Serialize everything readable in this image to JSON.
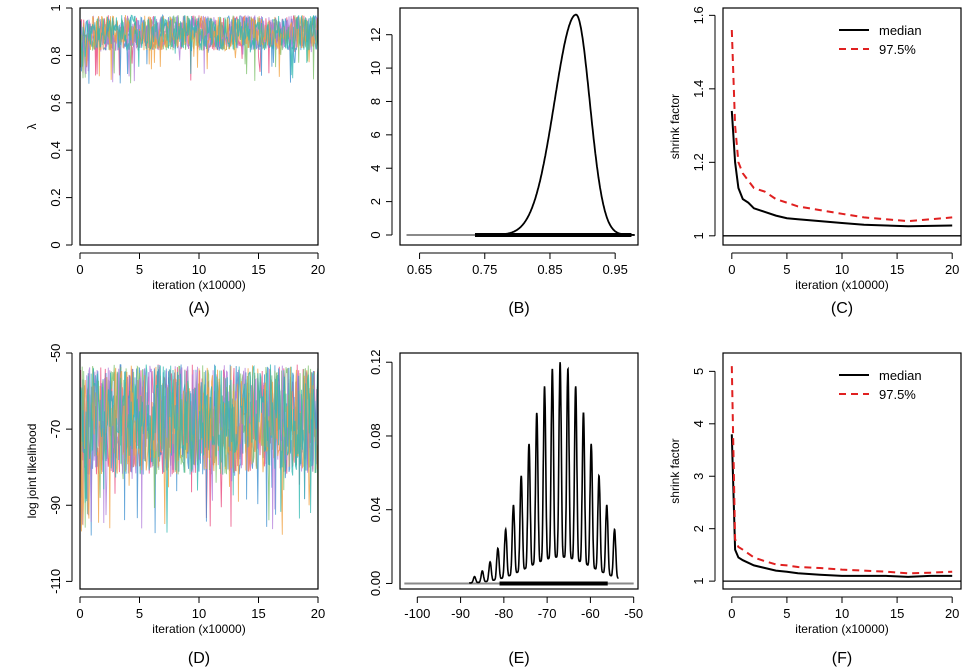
{
  "chart_data": [
    {
      "panel": "A",
      "type": "line",
      "caption": "(A)",
      "xlabel": "iteration (x10000)",
      "ylabel": "λ",
      "xlim": [
        0,
        20
      ],
      "ylim": [
        0,
        1
      ],
      "xticks": [
        0,
        5,
        10,
        15,
        20
      ],
      "yticks": [
        0,
        0.2,
        0.4,
        0.6,
        0.8,
        1
      ],
      "ytick_labels": [
        "0",
        "0.2",
        "0.4",
        "0.6",
        "0.8",
        "1"
      ],
      "trace": {
        "center": 0.9,
        "low": 0.82,
        "high": 0.97,
        "min": 0.68,
        "max": 0.98
      },
      "series_colors": [
        "#e8457a",
        "#3c8fd0",
        "#7cc06a",
        "#b07ad9",
        "#f0a040",
        "#30b8b0"
      ]
    },
    {
      "panel": "B",
      "type": "line",
      "caption": "(B)",
      "xlabel": "",
      "ylabel": "",
      "xlim": [
        0.62,
        0.985
      ],
      "ylim": [
        -0.6,
        13.6
      ],
      "xticks": [
        0.65,
        0.75,
        0.85,
        0.95
      ],
      "yticks": [
        0,
        2,
        4,
        6,
        8,
        10,
        12
      ],
      "density": {
        "peak_x": 0.89,
        "peak_y": 13.2,
        "sd_left": 0.033,
        "sd_right": 0.021
      },
      "rug": [
        0.735,
        0.975
      ],
      "baseline": [
        0.63,
        0.98
      ]
    },
    {
      "panel": "C",
      "type": "line",
      "caption": "(C)",
      "xlabel": "iteration (x10000)",
      "ylabel": "shrink factor",
      "xlim": [
        -0.8,
        20.8
      ],
      "ylim": [
        0.975,
        1.62
      ],
      "xticks": [
        0,
        5,
        10,
        15,
        20
      ],
      "yticks": [
        1,
        1.2,
        1.4,
        1.6
      ],
      "hline": 1,
      "legend": {
        "position": "top-right",
        "entries": [
          "median",
          "97.5%"
        ]
      },
      "series": [
        {
          "name": "median",
          "color": "#000000",
          "dash": "solid",
          "x": [
            0,
            0.3,
            0.6,
            1,
            1.5,
            2,
            3,
            4,
            5,
            6,
            8,
            10,
            12,
            14,
            16,
            18,
            20
          ],
          "y": [
            1.34,
            1.2,
            1.13,
            1.1,
            1.09,
            1.075,
            1.065,
            1.055,
            1.048,
            1.045,
            1.04,
            1.035,
            1.03,
            1.028,
            1.026,
            1.027,
            1.028
          ]
        },
        {
          "name": "97.5%",
          "color": "#e02020",
          "dash": "dashed",
          "x": [
            0,
            0.3,
            0.6,
            1,
            1.5,
            2,
            3,
            4,
            5,
            6,
            8,
            10,
            12,
            14,
            16,
            18,
            20
          ],
          "y": [
            1.56,
            1.3,
            1.2,
            1.17,
            1.15,
            1.13,
            1.12,
            1.1,
            1.09,
            1.08,
            1.07,
            1.06,
            1.05,
            1.045,
            1.04,
            1.045,
            1.05
          ]
        }
      ]
    },
    {
      "panel": "D",
      "type": "line",
      "caption": "(D)",
      "xlabel": "iteration (x10000)",
      "ylabel": "log joint likelihood",
      "xlim": [
        0,
        20
      ],
      "ylim": [
        -112,
        -50
      ],
      "xticks": [
        0,
        5,
        10,
        15,
        20
      ],
      "yticks": [
        -110,
        -90,
        -70,
        -50
      ],
      "trace": {
        "center": -68,
        "low": -82,
        "high": -53,
        "min": -98,
        "max": -52
      },
      "series_colors": [
        "#e8457a",
        "#3c8fd0",
        "#7cc06a",
        "#b07ad9",
        "#f0a040",
        "#30b8b0"
      ]
    },
    {
      "panel": "E",
      "type": "line",
      "caption": "(E)",
      "xlabel": "",
      "ylabel": "",
      "xlim": [
        -104,
        -49
      ],
      "ylim": [
        -0.003,
        0.125
      ],
      "xticks": [
        -100,
        -90,
        -80,
        -70,
        -60,
        -50
      ],
      "yticks": [
        0,
        0.04,
        0.08,
        0.12
      ],
      "ytick_labels": [
        "0.00",
        "0.04",
        "0.08",
        "0.12"
      ],
      "density": {
        "center": -67,
        "sd": 7.5,
        "peak": 0.12,
        "period": 1.8
      },
      "rug": [
        -81,
        -56
      ],
      "baseline": [
        -103,
        -50
      ]
    },
    {
      "panel": "F",
      "type": "line",
      "caption": "(F)",
      "xlabel": "iteration (x10000)",
      "ylabel": "shrink factor",
      "xlim": [
        -0.8,
        20.8
      ],
      "ylim": [
        0.85,
        5.35
      ],
      "xticks": [
        0,
        5,
        10,
        15,
        20
      ],
      "yticks": [
        1,
        2,
        3,
        4,
        5
      ],
      "hline": 1,
      "legend": {
        "position": "top-right",
        "entries": [
          "median",
          "97.5%"
        ]
      },
      "series": [
        {
          "name": "median",
          "color": "#000000",
          "dash": "solid",
          "x": [
            0,
            0.3,
            0.6,
            1,
            2,
            3,
            4,
            5,
            6,
            8,
            10,
            12,
            14,
            16,
            18,
            20
          ],
          "y": [
            3.8,
            1.6,
            1.45,
            1.4,
            1.3,
            1.25,
            1.2,
            1.18,
            1.15,
            1.12,
            1.1,
            1.1,
            1.1,
            1.08,
            1.1,
            1.1
          ]
        },
        {
          "name": "97.5%",
          "color": "#e02020",
          "dash": "dashed",
          "x": [
            0,
            0.3,
            0.6,
            1,
            2,
            3,
            4,
            5,
            6,
            8,
            10,
            12,
            14,
            16,
            18,
            20
          ],
          "y": [
            5.1,
            1.8,
            1.65,
            1.6,
            1.45,
            1.38,
            1.32,
            1.3,
            1.27,
            1.25,
            1.22,
            1.2,
            1.18,
            1.15,
            1.16,
            1.18
          ]
        }
      ]
    }
  ]
}
